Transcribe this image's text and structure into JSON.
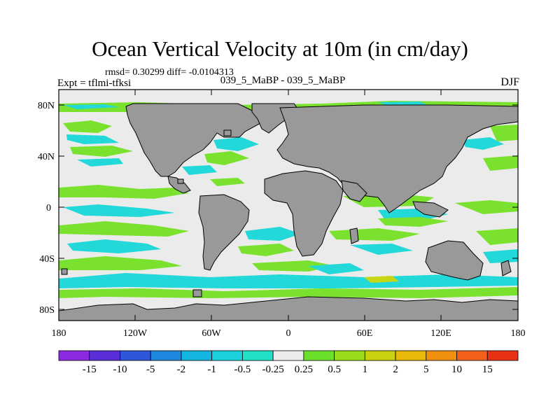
{
  "title": "Ocean Vertical Velocity at 10m (in cm/day)",
  "stats": "rmsd= 0.30299  diff= -0.0104313",
  "experiment": "Expt = tflmi-tfksi",
  "subtitle": "039_5_MaBP - 039_5_MaBP",
  "season": "DJF",
  "axes": {
    "lat_ticks": [
      "80N",
      "40N",
      "0",
      "40S",
      "80S"
    ],
    "lon_ticks": [
      "180",
      "120W",
      "60W",
      "0",
      "60E",
      "120E",
      "180"
    ]
  },
  "colorbar": {
    "labels": [
      "-15",
      "-10",
      "-5",
      "-2",
      "-1",
      "-0.5",
      "-0.25",
      "0.25",
      "0.5",
      "1",
      "2",
      "5",
      "10",
      "15"
    ],
    "colors": [
      "#8a2be2",
      "#5a2fd8",
      "#2f55d8",
      "#1e88e0",
      "#14b4e0",
      "#19d0dc",
      "#22e0c8",
      "#ececec",
      "#6ae02a",
      "#9adc1a",
      "#c8d20e",
      "#e8b80a",
      "#f09010",
      "#f06018",
      "#e83014"
    ]
  },
  "colors": {
    "land": "#999999",
    "neutral": "#ebebeb",
    "green": "#7ae22e",
    "cyan": "#22d8d8",
    "yellow": "#c8d614"
  }
}
